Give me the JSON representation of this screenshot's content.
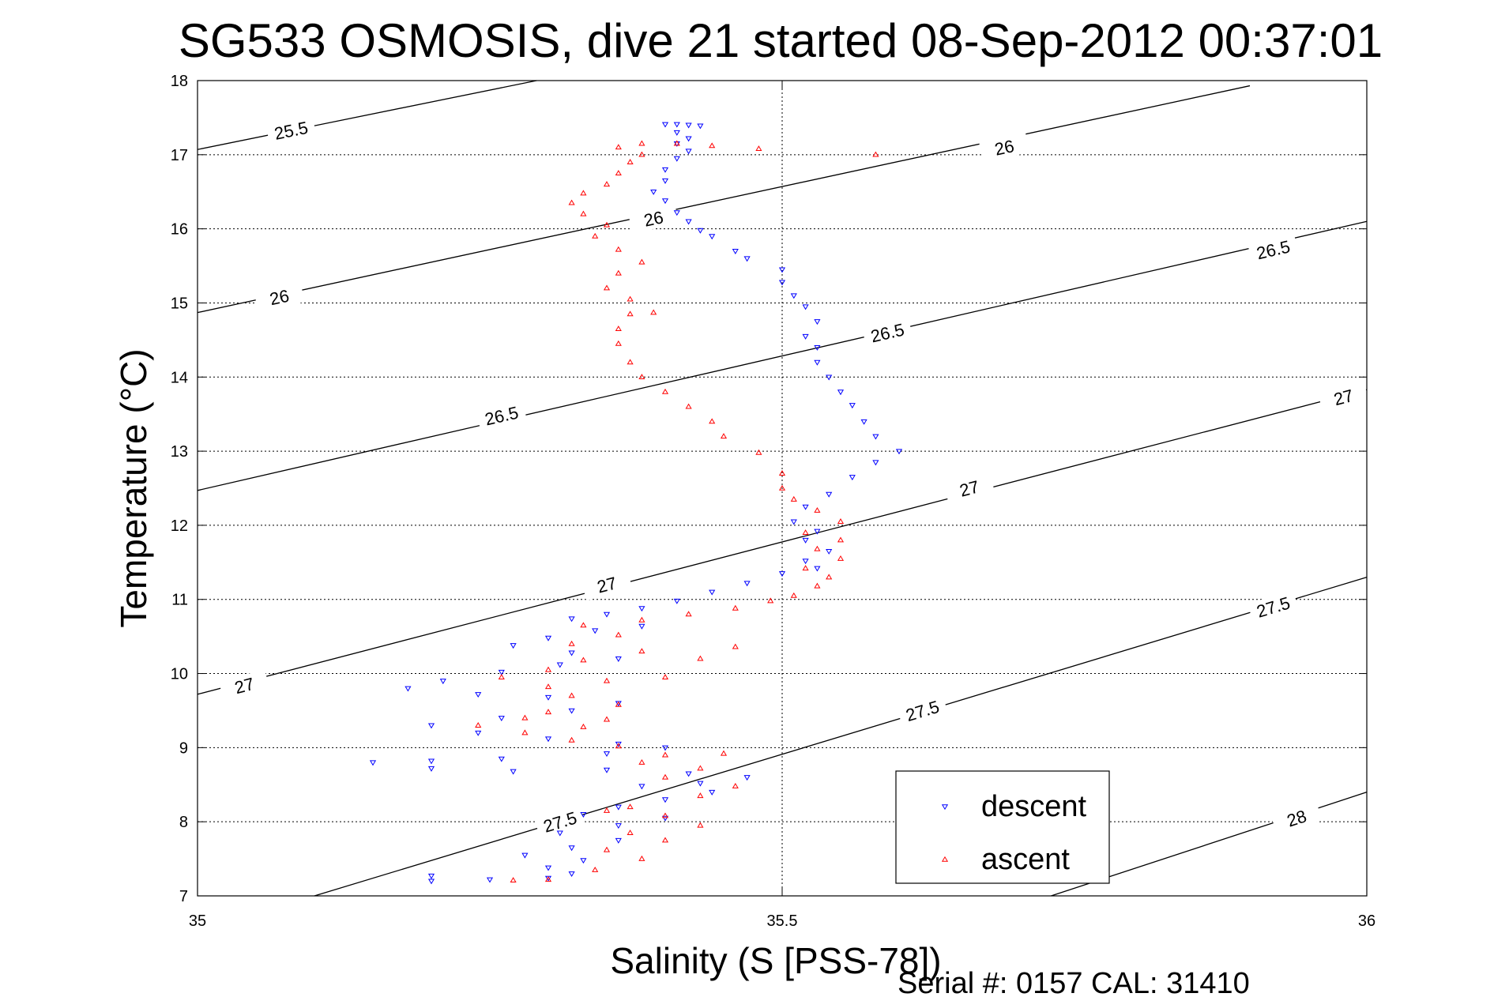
{
  "chart_data": {
    "type": "scatter",
    "title": "SG533 OSMOSIS, dive 21 started 08-Sep-2012 00:37:01",
    "xlabel": "Salinity (S [PSS-78])",
    "ylabel": "Temperature (°C)",
    "xlim": [
      35,
      36
    ],
    "ylim": [
      7,
      18
    ],
    "x_ticks": [
      "35",
      "35.5",
      "36"
    ],
    "y_ticks": [
      "7",
      "8",
      "9",
      "10",
      "11",
      "12",
      "13",
      "14",
      "15",
      "16",
      "17",
      "18"
    ],
    "grid": true,
    "legend_position": "bottom-right",
    "footer": "Serial #: 0157  CAL: 31410",
    "colors": {
      "descent": "#0000ff",
      "ascent": "#ff0000",
      "contour": "#000000"
    },
    "contours": [
      {
        "label": "25.5",
        "points": [
          [
            35.0,
            17.07
          ],
          [
            35.29,
            18.0
          ]
        ],
        "label_positions": [
          [
            35.08,
            17.33
          ]
        ]
      },
      {
        "label": "26",
        "points": [
          [
            35.0,
            14.87
          ],
          [
            35.9,
            17.93
          ]
        ],
        "label_positions": [
          [
            35.07,
            15.08
          ],
          [
            35.39,
            16.14
          ],
          [
            35.69,
            17.1
          ]
        ]
      },
      {
        "label": "26.5",
        "points": [
          [
            35.0,
            12.47
          ],
          [
            36.0,
            16.1
          ]
        ],
        "label_positions": [
          [
            35.26,
            13.48
          ],
          [
            35.59,
            14.6
          ],
          [
            35.92,
            15.72
          ]
        ]
      },
      {
        "label": "27",
        "points": [
          [
            35.0,
            9.72
          ],
          [
            36.0,
            13.83
          ]
        ],
        "label_positions": [
          [
            35.04,
            9.84
          ],
          [
            35.35,
            11.2
          ],
          [
            35.66,
            12.5
          ],
          [
            35.98,
            13.73
          ]
        ]
      },
      {
        "label": "27.5",
        "points": [
          [
            35.1,
            7.0
          ],
          [
            36.0,
            11.3
          ]
        ],
        "label_positions": [
          [
            35.31,
            8.0
          ],
          [
            35.62,
            9.5
          ],
          [
            35.92,
            10.9
          ]
        ]
      },
      {
        "label": "28",
        "points": [
          [
            35.73,
            7.0
          ],
          [
            36.0,
            8.4
          ]
        ],
        "label_positions": [
          [
            35.94,
            8.05
          ]
        ]
      }
    ],
    "series": [
      {
        "name": "descent",
        "marker": "down-triangle",
        "color": "#0000ff",
        "points": [
          [
            35.4,
            17.41
          ],
          [
            35.41,
            17.41
          ],
          [
            35.42,
            17.4
          ],
          [
            35.43,
            17.39
          ],
          [
            35.41,
            17.3
          ],
          [
            35.42,
            17.22
          ],
          [
            35.41,
            17.15
          ],
          [
            35.42,
            17.05
          ],
          [
            35.41,
            16.95
          ],
          [
            35.4,
            16.8
          ],
          [
            35.4,
            16.65
          ],
          [
            35.39,
            16.5
          ],
          [
            35.4,
            16.38
          ],
          [
            35.41,
            16.22
          ],
          [
            35.42,
            16.1
          ],
          [
            35.43,
            15.98
          ],
          [
            35.44,
            15.9
          ],
          [
            35.46,
            15.7
          ],
          [
            35.47,
            15.6
          ],
          [
            35.5,
            15.45
          ],
          [
            35.5,
            15.28
          ],
          [
            35.51,
            15.1
          ],
          [
            35.52,
            14.95
          ],
          [
            35.53,
            14.75
          ],
          [
            35.52,
            14.55
          ],
          [
            35.53,
            14.4
          ],
          [
            35.53,
            14.2
          ],
          [
            35.54,
            14.0
          ],
          [
            35.55,
            13.8
          ],
          [
            35.56,
            13.62
          ],
          [
            35.57,
            13.4
          ],
          [
            35.58,
            13.2
          ],
          [
            35.6,
            13.0
          ],
          [
            35.58,
            12.85
          ],
          [
            35.56,
            12.65
          ],
          [
            35.54,
            12.42
          ],
          [
            35.52,
            12.25
          ],
          [
            35.51,
            12.05
          ],
          [
            35.53,
            11.92
          ],
          [
            35.52,
            11.8
          ],
          [
            35.54,
            11.65
          ],
          [
            35.52,
            11.52
          ],
          [
            35.53,
            11.42
          ],
          [
            35.5,
            11.35
          ],
          [
            35.47,
            11.22
          ],
          [
            35.44,
            11.1
          ],
          [
            35.41,
            10.98
          ],
          [
            35.38,
            10.88
          ],
          [
            35.35,
            10.8
          ],
          [
            35.32,
            10.74
          ],
          [
            35.38,
            10.64
          ],
          [
            35.34,
            10.58
          ],
          [
            35.3,
            10.48
          ],
          [
            35.27,
            10.38
          ],
          [
            35.32,
            10.28
          ],
          [
            35.36,
            10.2
          ],
          [
            35.31,
            10.12
          ],
          [
            35.26,
            10.02
          ],
          [
            35.21,
            9.9
          ],
          [
            35.18,
            9.8
          ],
          [
            35.24,
            9.72
          ],
          [
            35.3,
            9.68
          ],
          [
            35.36,
            9.6
          ],
          [
            35.32,
            9.5
          ],
          [
            35.26,
            9.4
          ],
          [
            35.2,
            9.3
          ],
          [
            35.24,
            9.2
          ],
          [
            35.3,
            9.12
          ],
          [
            35.36,
            9.05
          ],
          [
            35.4,
            9.0
          ],
          [
            35.35,
            8.92
          ],
          [
            35.26,
            8.85
          ],
          [
            35.2,
            8.82
          ],
          [
            35.15,
            8.8
          ],
          [
            35.2,
            8.72
          ],
          [
            35.27,
            8.68
          ],
          [
            35.35,
            8.7
          ],
          [
            35.42,
            8.65
          ],
          [
            35.47,
            8.6
          ],
          [
            35.43,
            8.52
          ],
          [
            35.38,
            8.48
          ],
          [
            35.44,
            8.4
          ],
          [
            35.4,
            8.3
          ],
          [
            35.36,
            8.2
          ],
          [
            35.33,
            8.1
          ],
          [
            35.4,
            8.05
          ],
          [
            35.36,
            7.95
          ],
          [
            35.31,
            7.85
          ],
          [
            35.36,
            7.75
          ],
          [
            35.32,
            7.65
          ],
          [
            35.28,
            7.55
          ],
          [
            35.33,
            7.48
          ],
          [
            35.3,
            7.38
          ],
          [
            35.32,
            7.3
          ],
          [
            35.3,
            7.24
          ],
          [
            35.25,
            7.22
          ],
          [
            35.2,
            7.27
          ],
          [
            35.2,
            7.2
          ]
        ]
      },
      {
        "name": "ascent",
        "marker": "up-triangle",
        "color": "#ff0000",
        "points": [
          [
            35.3,
            7.22
          ],
          [
            35.34,
            7.35
          ],
          [
            35.38,
            7.5
          ],
          [
            35.35,
            7.62
          ],
          [
            35.4,
            7.75
          ],
          [
            35.37,
            7.85
          ],
          [
            35.43,
            7.95
          ],
          [
            35.4,
            8.08
          ],
          [
            35.37,
            8.2
          ],
          [
            35.43,
            8.35
          ],
          [
            35.46,
            8.48
          ],
          [
            35.4,
            8.6
          ],
          [
            35.43,
            8.72
          ],
          [
            35.38,
            8.8
          ],
          [
            35.4,
            8.9
          ],
          [
            35.36,
            9.02
          ],
          [
            35.32,
            9.1
          ],
          [
            35.28,
            9.2
          ],
          [
            35.24,
            9.3
          ],
          [
            35.28,
            9.4
          ],
          [
            35.35,
            9.38
          ],
          [
            35.33,
            9.28
          ],
          [
            35.3,
            9.48
          ],
          [
            35.36,
            9.58
          ],
          [
            35.32,
            9.7
          ],
          [
            35.3,
            9.82
          ],
          [
            35.35,
            9.9
          ],
          [
            35.4,
            9.95
          ],
          [
            35.43,
            10.2
          ],
          [
            35.46,
            10.36
          ],
          [
            35.38,
            10.3
          ],
          [
            35.33,
            10.18
          ],
          [
            35.3,
            10.05
          ],
          [
            35.26,
            9.95
          ],
          [
            35.32,
            10.4
          ],
          [
            35.36,
            10.52
          ],
          [
            35.33,
            10.65
          ],
          [
            35.38,
            10.72
          ],
          [
            35.42,
            10.8
          ],
          [
            35.46,
            10.88
          ],
          [
            35.49,
            10.98
          ],
          [
            35.51,
            11.05
          ],
          [
            35.53,
            11.18
          ],
          [
            35.54,
            11.3
          ],
          [
            35.52,
            11.42
          ],
          [
            35.55,
            11.55
          ],
          [
            35.53,
            11.68
          ],
          [
            35.55,
            11.8
          ],
          [
            35.52,
            11.9
          ],
          [
            35.55,
            12.05
          ],
          [
            35.53,
            12.2
          ],
          [
            35.51,
            12.35
          ],
          [
            35.5,
            12.5
          ],
          [
            35.5,
            12.7
          ],
          [
            35.48,
            12.98
          ],
          [
            35.45,
            13.2
          ],
          [
            35.44,
            13.4
          ],
          [
            35.42,
            13.6
          ],
          [
            35.4,
            13.8
          ],
          [
            35.38,
            14.0
          ],
          [
            35.37,
            14.2
          ],
          [
            35.36,
            14.45
          ],
          [
            35.36,
            14.65
          ],
          [
            35.37,
            14.85
          ],
          [
            35.39,
            14.87
          ],
          [
            35.37,
            15.05
          ],
          [
            35.35,
            15.2
          ],
          [
            35.36,
            15.4
          ],
          [
            35.38,
            15.55
          ],
          [
            35.36,
            15.72
          ],
          [
            35.34,
            15.9
          ],
          [
            35.35,
            16.05
          ],
          [
            35.33,
            16.2
          ],
          [
            35.32,
            16.35
          ],
          [
            35.33,
            16.48
          ],
          [
            35.35,
            16.6
          ],
          [
            35.36,
            16.75
          ],
          [
            35.37,
            16.9
          ],
          [
            35.38,
            17.0
          ],
          [
            35.36,
            17.1
          ],
          [
            35.38,
            17.15
          ],
          [
            35.41,
            17.15
          ],
          [
            35.44,
            17.12
          ],
          [
            35.48,
            17.08
          ],
          [
            35.58,
            17.0
          ],
          [
            35.27,
            7.21
          ],
          [
            35.35,
            8.15
          ],
          [
            35.45,
            8.92
          ]
        ]
      }
    ]
  }
}
